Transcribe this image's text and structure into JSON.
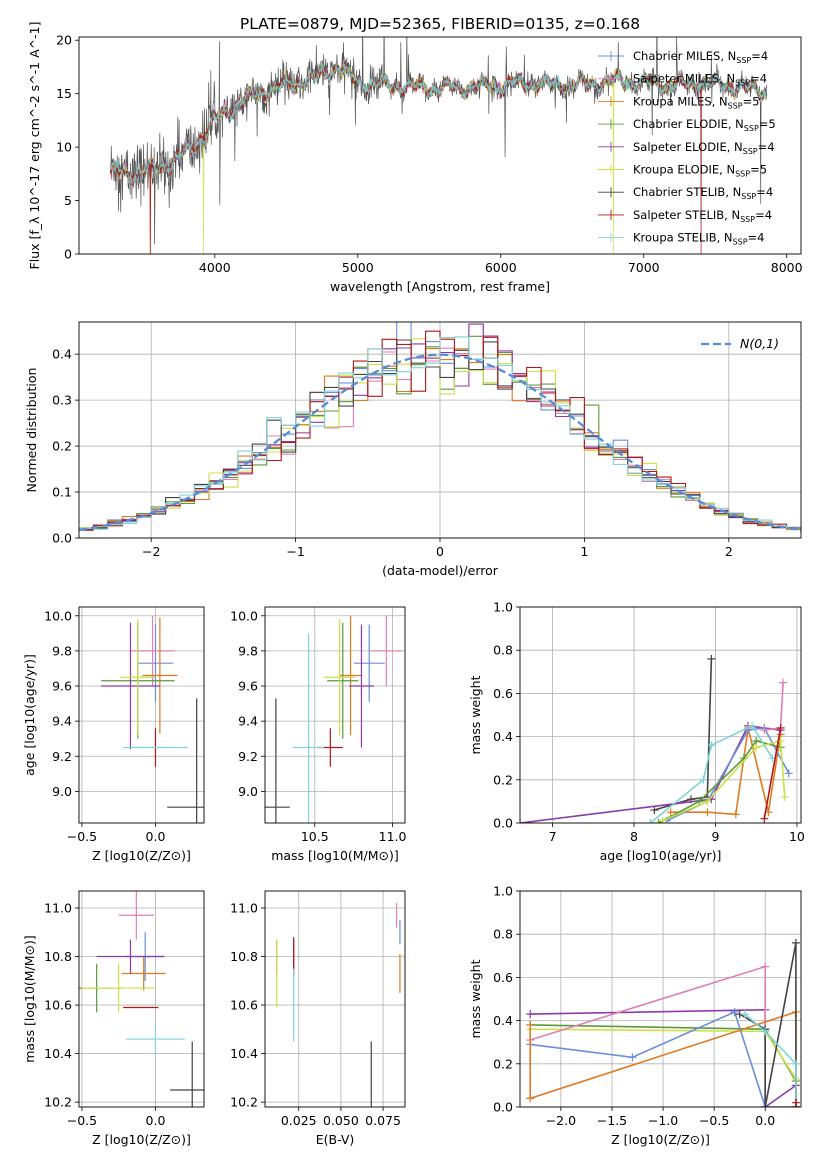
{
  "figure": {
    "title": "PLATE=0879, MJD=52365, FIBERID=0135, z=0.168"
  },
  "colors": {
    "chabrier_miles": "#6a8fd8",
    "salpeter_miles": "#e07fb6",
    "kroupa_miles": "#e07a1f",
    "chabrier_elodie": "#5a9a3a",
    "salpeter_elodie": "#8e3aa8",
    "kroupa_elodie": "#cde045",
    "chabrier_stelib": "#444444",
    "salpeter_stelib": "#b01818",
    "kroupa_stelib": "#7fd4d8",
    "data": "#555555",
    "normal": "#5b8bd8",
    "grid": "#b0b0b0"
  },
  "chart_data": [
    {
      "id": "spectrum",
      "type": "line",
      "xlabel": "wavelength [Angstrom, rest frame]",
      "ylabel": "Flux [f_λ 10^-17 erg cm^-2 s^-1 A^-1]",
      "xlim": [
        3050,
        8100
      ],
      "ylim": [
        0,
        20.3
      ],
      "xticks": [
        4000,
        5000,
        6000,
        7000,
        8000
      ],
      "yticks": [
        0,
        5,
        10,
        15,
        20
      ],
      "grid": false,
      "legend_position": "top-right",
      "series": [
        {
          "name": "Chabrier MILES, N_SSP=4",
          "key": "chabrier_miles"
        },
        {
          "name": "Salpeter MILES, N_SSP=4",
          "key": "salpeter_miles"
        },
        {
          "name": "Kroupa MILES, N_SSP=5",
          "key": "kroupa_miles"
        },
        {
          "name": "Chabrier ELODIE, N_SSP=5",
          "key": "chabrier_elodie"
        },
        {
          "name": "Salpeter ELODIE, N_SSP=4",
          "key": "salpeter_elodie"
        },
        {
          "name": "Kroupa ELODIE, N_SSP=5",
          "key": "kroupa_elodie"
        },
        {
          "name": "Chabrier STELIB, N_SSP=4",
          "key": "chabrier_stelib"
        },
        {
          "name": "Salpeter STELIB, N_SSP=4",
          "key": "salpeter_stelib"
        },
        {
          "name": "Kroupa STELIB, N_SSP=4",
          "key": "kroupa_stelib"
        }
      ],
      "continuum": {
        "x": [
          3270,
          3400,
          3550,
          3700,
          3850,
          4000,
          4150,
          4300,
          4500,
          4700,
          4860,
          5000,
          5200,
          5400,
          5600,
          5800,
          6000,
          6200,
          6400,
          6600,
          6800,
          7000,
          7200,
          7400,
          7600,
          7860
        ],
        "y": [
          7.8,
          7.5,
          7.8,
          8.5,
          10.0,
          12.5,
          14.0,
          15.0,
          15.8,
          16.5,
          17.5,
          16.0,
          15.8,
          15.6,
          15.5,
          15.6,
          15.8,
          16.0,
          15.8,
          15.9,
          16.2,
          16.0,
          15.8,
          16.0,
          15.7,
          15.2
        ]
      },
      "model_dropouts": [
        {
          "key": "salpeter_stelib",
          "x": 3550
        },
        {
          "key": "kroupa_miles",
          "x": 3550
        },
        {
          "key": "kroupa_elodie",
          "x": 3920
        },
        {
          "key": "kroupa_elodie",
          "x": 6790
        },
        {
          "key": "salpeter_stelib",
          "x": 7400
        }
      ]
    },
    {
      "id": "residuals",
      "type": "histogram",
      "xlabel": "(data-model)/error",
      "ylabel": "Normed distribution",
      "xlim": [
        -2.5,
        2.5
      ],
      "ylim": [
        0,
        0.47
      ],
      "xticks": [
        -2,
        -1,
        0,
        1,
        2
      ],
      "yticks": [
        0.0,
        0.1,
        0.2,
        0.3,
        0.4
      ],
      "grid": true,
      "legend_position": "top-right",
      "normal_label": "N(0,1)",
      "bin_width": 0.1,
      "bin_start": -2.5
    },
    {
      "id": "age_vs_Z",
      "type": "scatter",
      "xlabel": "Z [log10(Z/Z⊙)]",
      "ylabel": "age [log10(age/yr)]",
      "xlim": [
        -0.52,
        0.33
      ],
      "ylim": [
        8.82,
        10.05
      ],
      "xticks": [
        -0.5,
        0.0
      ],
      "xticklabels": [
        "−0.5",
        "0.0"
      ],
      "yticks": [
        9.0,
        9.2,
        9.4,
        9.6,
        9.8,
        10.0
      ],
      "grid": true,
      "points": [
        {
          "key": "chabrier_miles",
          "x": 0.0,
          "y": 9.73,
          "ex": 0.12,
          "ey": 0.22
        },
        {
          "key": "salpeter_miles",
          "x": -0.02,
          "y": 9.8,
          "ex": 0.15,
          "ey": 0.2
        },
        {
          "key": "kroupa_miles",
          "x": 0.03,
          "y": 9.66,
          "ex": 0.12,
          "ey": 0.33
        },
        {
          "key": "chabrier_elodie",
          "x": -0.12,
          "y": 9.63,
          "ex": 0.25,
          "ey": 0.33
        },
        {
          "key": "salpeter_elodie",
          "x": -0.17,
          "y": 9.6,
          "ex": 0.2,
          "ey": 0.36
        },
        {
          "key": "kroupa_elodie",
          "x": -0.12,
          "y": 9.65,
          "ex": 0.12,
          "ey": 0.33
        },
        {
          "key": "chabrier_stelib",
          "x": 0.28,
          "y": 8.91,
          "ex": 0.2,
          "ey": 0.62
        },
        {
          "key": "salpeter_stelib",
          "x": 0.0,
          "y": 9.25,
          "ex": 0.0,
          "ey": 0.11
        },
        {
          "key": "kroupa_stelib",
          "x": 0.0,
          "y": 9.25,
          "ex": 0.22,
          "ey": 0.0
        }
      ]
    },
    {
      "id": "age_vs_mass",
      "type": "scatter",
      "xlabel": "mass [log10(M/M⊙)]",
      "ylabel": "",
      "xlim": [
        10.18,
        11.08
      ],
      "ylim": [
        8.82,
        10.05
      ],
      "xticks": [
        10.5,
        11.0
      ],
      "xticklabels": [
        "10.5",
        "11.0"
      ],
      "yticks": [
        9.0,
        9.2,
        9.4,
        9.6,
        9.8,
        10.0
      ],
      "grid": true,
      "points": [
        {
          "key": "chabrier_miles",
          "x": 10.85,
          "y": 9.73,
          "ex": 0.1,
          "ey": 0.22
        },
        {
          "key": "salpeter_miles",
          "x": 10.96,
          "y": 9.8,
          "ex": 0.1,
          "ey": 0.2
        },
        {
          "key": "kroupa_miles",
          "x": 10.73,
          "y": 9.66,
          "ex": 0.07,
          "ey": 0.34
        },
        {
          "key": "chabrier_elodie",
          "x": 10.68,
          "y": 9.63,
          "ex": 0.1,
          "ey": 0.33
        },
        {
          "key": "salpeter_elodie",
          "x": 10.8,
          "y": 9.6,
          "ex": 0.08,
          "ey": 0.35
        },
        {
          "key": "kroupa_elodie",
          "x": 10.66,
          "y": 9.65,
          "ex": 0.1,
          "ey": 0.33
        },
        {
          "key": "chabrier_stelib",
          "x": 10.25,
          "y": 8.91,
          "ex": 0.09,
          "ey": 0.62
        },
        {
          "key": "salpeter_stelib",
          "x": 10.6,
          "y": 9.25,
          "ex": 0.08,
          "ey": 0.11
        },
        {
          "key": "kroupa_stelib",
          "x": 10.46,
          "y": 9.25,
          "ex": 0.1,
          "ey": 0.65
        }
      ]
    },
    {
      "id": "weight_vs_age",
      "type": "line",
      "xlabel": "age [log10(age/yr)]",
      "ylabel": "mass weight",
      "xlim": [
        6.6,
        10.05
      ],
      "ylim": [
        0,
        1.0
      ],
      "xticks": [
        7,
        8,
        9,
        10
      ],
      "yticks": [
        0.0,
        0.2,
        0.4,
        0.6,
        0.8,
        1.0
      ],
      "grid": true,
      "series": [
        {
          "key": "chabrier_stelib",
          "x": [
            8.25,
            8.7,
            8.9,
            8.95
          ],
          "y": [
            0.06,
            0.11,
            0.12,
            0.76
          ]
        },
        {
          "key": "salpeter_elodie",
          "x": [
            6.6,
            8.95,
            9.4,
            9.8
          ],
          "y": [
            0.0,
            0.11,
            0.45,
            0.43
          ]
        },
        {
          "key": "kroupa_miles",
          "x": [
            8.45,
            8.9,
            9.25,
            9.4,
            9.65,
            9.8
          ],
          "y": [
            0.05,
            0.05,
            0.04,
            0.44,
            0.05,
            0.41
          ]
        },
        {
          "key": "chabrier_miles",
          "x": [
            8.4,
            8.9,
            9.4,
            9.6,
            9.9
          ],
          "y": [
            0.01,
            0.1,
            0.43,
            0.44,
            0.23
          ]
        },
        {
          "key": "chabrier_elodie",
          "x": [
            8.3,
            8.8,
            9.35,
            9.5,
            9.8
          ],
          "y": [
            0.0,
            0.1,
            0.3,
            0.38,
            0.35
          ]
        },
        {
          "key": "kroupa_elodie",
          "x": [
            8.35,
            8.9,
            9.5,
            9.8,
            9.85
          ],
          "y": [
            0.01,
            0.1,
            0.35,
            0.38,
            0.12
          ]
        },
        {
          "key": "kroupa_stelib",
          "x": [
            8.2,
            8.85,
            8.95,
            9.45,
            9.7
          ],
          "y": [
            0.0,
            0.2,
            0.36,
            0.45,
            0.3
          ]
        },
        {
          "key": "salpeter_miles",
          "x": [
            9.6,
            9.8,
            9.83
          ],
          "y": [
            0.43,
            0.44,
            0.65
          ]
        },
        {
          "key": "salpeter_stelib",
          "x": [
            9.6,
            9.8
          ],
          "y": [
            0.02,
            0.44
          ]
        }
      ]
    },
    {
      "id": "mass_vs_Z",
      "type": "scatter",
      "xlabel": "Z [log10(Z/Z⊙)]",
      "ylabel": "mass [log10(M/M⊙)]",
      "xlim": [
        -0.52,
        0.33
      ],
      "ylim": [
        10.18,
        11.07
      ],
      "xticks": [
        -0.5,
        0.0
      ],
      "xticklabels": [
        "−0.5",
        "0.0"
      ],
      "yticks": [
        10.2,
        10.4,
        10.6,
        10.8,
        11.0
      ],
      "grid": true,
      "points": [
        {
          "key": "chabrier_miles",
          "x": -0.07,
          "y": 10.8,
          "ex": 0.13,
          "ey": 0.1
        },
        {
          "key": "salpeter_miles",
          "x": -0.13,
          "y": 10.97,
          "ex": 0.12,
          "ey": 0.1
        },
        {
          "key": "kroupa_miles",
          "x": -0.08,
          "y": 10.73,
          "ex": 0.15,
          "ey": 0.07
        },
        {
          "key": "chabrier_elodie",
          "x": -0.4,
          "y": 10.67,
          "ex": 0.18,
          "ey": 0.1
        },
        {
          "key": "salpeter_elodie",
          "x": -0.17,
          "y": 10.8,
          "ex": 0.23,
          "ey": 0.07
        },
        {
          "key": "kroupa_elodie",
          "x": -0.25,
          "y": 10.67,
          "ex": 0.25,
          "ey": 0.1
        },
        {
          "key": "chabrier_stelib",
          "x": 0.25,
          "y": 10.25,
          "ex": 0.15,
          "ey": 0.2
        },
        {
          "key": "salpeter_stelib",
          "x": -0.1,
          "y": 10.59,
          "ex": 0.12,
          "ey": 0.0
        },
        {
          "key": "kroupa_stelib",
          "x": 0.0,
          "y": 10.46,
          "ex": 0.2,
          "ey": 0.06
        }
      ]
    },
    {
      "id": "mass_vs_EBV",
      "type": "scatter",
      "xlabel": "E(B-V)",
      "ylabel": "",
      "xlim": [
        0.005,
        0.088
      ],
      "ylim": [
        10.18,
        11.07
      ],
      "xticks": [
        0.025,
        0.05,
        0.075
      ],
      "xticklabels": [
        "0.025",
        "0.050",
        "0.075"
      ],
      "yticks": [
        10.2,
        10.4,
        10.6,
        10.8,
        11.0
      ],
      "grid": true,
      "points": [
        {
          "key": "chabrier_miles",
          "x": 0.085,
          "y": 10.9,
          "ex": 0.0,
          "ey": 0.05
        },
        {
          "key": "salpeter_miles",
          "x": 0.083,
          "y": 10.97,
          "ex": 0.0,
          "ey": 0.05
        },
        {
          "key": "kroupa_miles",
          "x": 0.085,
          "y": 10.73,
          "ex": 0.0,
          "ey": 0.08
        },
        {
          "key": "chabrier_elodie",
          "x": 0.012,
          "y": 10.8,
          "ex": 0.0,
          "ey": 0.07
        },
        {
          "key": "salpeter_elodie",
          "x": 0.022,
          "y": 10.8,
          "ex": 0.0,
          "ey": 0.07
        },
        {
          "key": "kroupa_elodie",
          "x": 0.012,
          "y": 10.73,
          "ex": 0.0,
          "ey": 0.14
        },
        {
          "key": "chabrier_stelib",
          "x": 0.068,
          "y": 10.3,
          "ex": 0.0,
          "ey": 0.15
        },
        {
          "key": "salpeter_stelib",
          "x": 0.022,
          "y": 10.8,
          "ex": 0.0,
          "ey": 0.08
        },
        {
          "key": "kroupa_stelib",
          "x": 0.022,
          "y": 10.6,
          "ex": 0.0,
          "ey": 0.15
        }
      ]
    },
    {
      "id": "weight_vs_Z",
      "type": "line",
      "xlabel": "Z [log10(Z/Z⊙)]",
      "ylabel": "mass weight",
      "xlim": [
        -2.4,
        0.35
      ],
      "ylim": [
        0,
        1.0
      ],
      "xticks": [
        -2.0,
        -1.5,
        -1.0,
        -0.5,
        0.0
      ],
      "xticklabels": [
        "−2.0",
        "−1.5",
        "−1.0",
        "−0.5",
        "0.0"
      ],
      "yticks": [
        0.0,
        0.2,
        0.4,
        0.6,
        0.8,
        1.0
      ],
      "grid": true,
      "series": [
        {
          "key": "salpeter_elodie",
          "x": [
            -2.3,
            0.0,
            0.0,
            0.3,
            0.3
          ],
          "y": [
            0.43,
            0.45,
            0.0,
            0.1,
            0.0
          ]
        },
        {
          "key": "chabrier_elodie",
          "x": [
            -2.3,
            0.0,
            0.3,
            0.3
          ],
          "y": [
            0.38,
            0.36,
            0.12,
            0.0
          ]
        },
        {
          "key": "kroupa_elodie",
          "x": [
            -2.3,
            0.0,
            0.3,
            0.3
          ],
          "y": [
            0.36,
            0.35,
            0.13,
            0.0
          ]
        },
        {
          "key": "chabrier_miles",
          "x": [
            -2.3,
            -1.3,
            -0.3,
            0.0,
            0.3
          ],
          "y": [
            0.29,
            0.23,
            0.44,
            0.0,
            0.0
          ]
        },
        {
          "key": "salpeter_miles",
          "x": [
            -2.3,
            0.0,
            0.0
          ],
          "y": [
            0.31,
            0.65,
            0.0
          ]
        },
        {
          "key": "kroupa_miles",
          "x": [
            -2.3,
            -2.3,
            0.3,
            0.3
          ],
          "y": [
            0.38,
            0.04,
            0.44,
            0.0
          ]
        },
        {
          "key": "chabrier_stelib",
          "x": [
            -0.25,
            0.0,
            0.0,
            0.3,
            0.3
          ],
          "y": [
            0.43,
            0.36,
            0.0,
            0.76,
            0.0
          ]
        },
        {
          "key": "kroupa_stelib",
          "x": [
            -0.2,
            0.0,
            0.3,
            0.3
          ],
          "y": [
            0.43,
            0.35,
            0.2,
            0.0
          ]
        },
        {
          "key": "salpeter_stelib",
          "x": [
            0.3,
            0.3
          ],
          "y": [
            0.0,
            0.02
          ]
        }
      ]
    }
  ]
}
